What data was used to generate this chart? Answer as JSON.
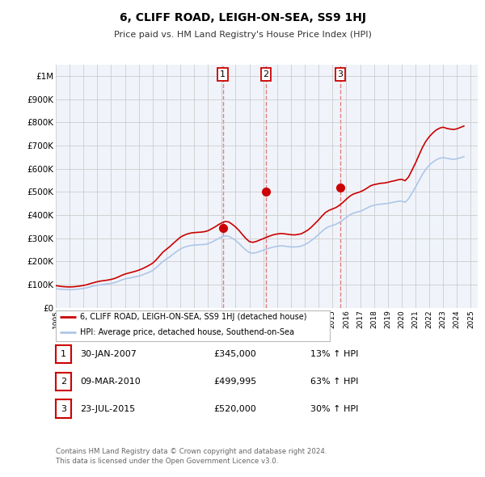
{
  "title": "6, CLIFF ROAD, LEIGH-ON-SEA, SS9 1HJ",
  "subtitle": "Price paid vs. HM Land Registry's House Price Index (HPI)",
  "background_color": "#ffffff",
  "plot_bg_color": "#f0f4fa",
  "grid_color": "#cccccc",
  "hpi_line_color": "#aec6e8",
  "price_line_color": "#cc0000",
  "dashed_line_color": "#e07070",
  "sale_marker_color": "#cc0000",
  "ylim": [
    0,
    1050000
  ],
  "yticks": [
    0,
    100000,
    200000,
    300000,
    400000,
    500000,
    600000,
    700000,
    800000,
    900000,
    1000000
  ],
  "ytick_labels": [
    "£0",
    "£100K",
    "£200K",
    "£300K",
    "£400K",
    "£500K",
    "£600K",
    "£700K",
    "£800K",
    "£900K",
    "£1M"
  ],
  "xlim_start": 1995.0,
  "xlim_end": 2025.5,
  "xtick_years": [
    1995,
    1996,
    1997,
    1998,
    1999,
    2000,
    2001,
    2002,
    2003,
    2004,
    2005,
    2006,
    2007,
    2008,
    2009,
    2010,
    2011,
    2012,
    2013,
    2014,
    2015,
    2016,
    2017,
    2018,
    2019,
    2020,
    2021,
    2022,
    2023,
    2024,
    2025
  ],
  "sales": [
    {
      "year": 2007.08,
      "price": 345000,
      "label": "1"
    },
    {
      "year": 2010.19,
      "price": 499995,
      "label": "2"
    },
    {
      "year": 2015.56,
      "price": 520000,
      "label": "3"
    }
  ],
  "sale_table": [
    {
      "num": "1",
      "date": "30-JAN-2007",
      "price": "£345,000",
      "change": "13% ↑ HPI"
    },
    {
      "num": "2",
      "date": "09-MAR-2010",
      "price": "£499,995",
      "change": "63% ↑ HPI"
    },
    {
      "num": "3",
      "date": "23-JUL-2015",
      "price": "£520,000",
      "change": "30% ↑ HPI"
    }
  ],
  "legend_entries": [
    {
      "label": "6, CLIFF ROAD, LEIGH-ON-SEA, SS9 1HJ (detached house)",
      "color": "#cc0000"
    },
    {
      "label": "HPI: Average price, detached house, Southend-on-Sea",
      "color": "#aec6e8"
    }
  ],
  "footer": "Contains HM Land Registry data © Crown copyright and database right 2024.\nThis data is licensed under the Open Government Licence v3.0.",
  "hpi_data": {
    "years": [
      1995.0,
      1995.25,
      1995.5,
      1995.75,
      1996.0,
      1996.25,
      1996.5,
      1996.75,
      1997.0,
      1997.25,
      1997.5,
      1997.75,
      1998.0,
      1998.25,
      1998.5,
      1998.75,
      1999.0,
      1999.25,
      1999.5,
      1999.75,
      2000.0,
      2000.25,
      2000.5,
      2000.75,
      2001.0,
      2001.25,
      2001.5,
      2001.75,
      2002.0,
      2002.25,
      2002.5,
      2002.75,
      2003.0,
      2003.25,
      2003.5,
      2003.75,
      2004.0,
      2004.25,
      2004.5,
      2004.75,
      2005.0,
      2005.25,
      2005.5,
      2005.75,
      2006.0,
      2006.25,
      2006.5,
      2006.75,
      2007.0,
      2007.25,
      2007.5,
      2007.75,
      2008.0,
      2008.25,
      2008.5,
      2008.75,
      2009.0,
      2009.25,
      2009.5,
      2009.75,
      2010.0,
      2010.25,
      2010.5,
      2010.75,
      2011.0,
      2011.25,
      2011.5,
      2011.75,
      2012.0,
      2012.25,
      2012.5,
      2012.75,
      2013.0,
      2013.25,
      2013.5,
      2013.75,
      2014.0,
      2014.25,
      2014.5,
      2014.75,
      2015.0,
      2015.25,
      2015.5,
      2015.75,
      2016.0,
      2016.25,
      2016.5,
      2016.75,
      2017.0,
      2017.25,
      2017.5,
      2017.75,
      2018.0,
      2018.25,
      2018.5,
      2018.75,
      2019.0,
      2019.25,
      2019.5,
      2019.75,
      2020.0,
      2020.25,
      2020.5,
      2020.75,
      2021.0,
      2021.25,
      2021.5,
      2021.75,
      2022.0,
      2022.25,
      2022.5,
      2022.75,
      2023.0,
      2023.25,
      2023.5,
      2023.75,
      2024.0,
      2024.25,
      2024.5
    ],
    "values": [
      82000,
      80000,
      79000,
      78000,
      77500,
      78000,
      79000,
      81000,
      83000,
      86000,
      90000,
      94000,
      97000,
      99000,
      101000,
      103000,
      105000,
      108000,
      113000,
      119000,
      124000,
      127000,
      130000,
      133000,
      136000,
      141000,
      147000,
      153000,
      160000,
      172000,
      186000,
      200000,
      210000,
      220000,
      232000,
      243000,
      253000,
      260000,
      265000,
      268000,
      270000,
      271000,
      272000,
      273000,
      276000,
      282000,
      290000,
      298000,
      305000,
      310000,
      308000,
      300000,
      290000,
      277000,
      262000,
      248000,
      238000,
      235000,
      238000,
      243000,
      248000,
      253000,
      258000,
      262000,
      265000,
      267000,
      266000,
      264000,
      262000,
      262000,
      263000,
      266000,
      272000,
      280000,
      291000,
      303000,
      316000,
      330000,
      342000,
      350000,
      355000,
      360000,
      368000,
      378000,
      390000,
      400000,
      408000,
      412000,
      416000,
      422000,
      430000,
      438000,
      442000,
      445000,
      447000,
      448000,
      450000,
      453000,
      456000,
      459000,
      460000,
      455000,
      470000,
      495000,
      520000,
      548000,
      575000,
      598000,
      615000,
      628000,
      638000,
      645000,
      648000,
      645000,
      642000,
      640000,
      643000,
      647000,
      652000
    ]
  },
  "price_data": {
    "years": [
      1995.0,
      1995.25,
      1995.5,
      1995.75,
      1996.0,
      1996.25,
      1996.5,
      1996.75,
      1997.0,
      1997.25,
      1997.5,
      1997.75,
      1998.0,
      1998.25,
      1998.5,
      1998.75,
      1999.0,
      1999.25,
      1999.5,
      1999.75,
      2000.0,
      2000.25,
      2000.5,
      2000.75,
      2001.0,
      2001.25,
      2001.5,
      2001.75,
      2002.0,
      2002.25,
      2002.5,
      2002.75,
      2003.0,
      2003.25,
      2003.5,
      2003.75,
      2004.0,
      2004.25,
      2004.5,
      2004.75,
      2005.0,
      2005.25,
      2005.5,
      2005.75,
      2006.0,
      2006.25,
      2006.5,
      2006.75,
      2007.0,
      2007.25,
      2007.5,
      2007.75,
      2008.0,
      2008.25,
      2008.5,
      2008.75,
      2009.0,
      2009.25,
      2009.5,
      2009.75,
      2010.0,
      2010.25,
      2010.5,
      2010.75,
      2011.0,
      2011.25,
      2011.5,
      2011.75,
      2012.0,
      2012.25,
      2012.5,
      2012.75,
      2013.0,
      2013.25,
      2013.5,
      2013.75,
      2014.0,
      2014.25,
      2014.5,
      2014.75,
      2015.0,
      2015.25,
      2015.5,
      2015.75,
      2016.0,
      2016.25,
      2016.5,
      2016.75,
      2017.0,
      2017.25,
      2017.5,
      2017.75,
      2018.0,
      2018.25,
      2018.5,
      2018.75,
      2019.0,
      2019.25,
      2019.5,
      2019.75,
      2020.0,
      2020.25,
      2020.5,
      2020.75,
      2021.0,
      2021.25,
      2021.5,
      2021.75,
      2022.0,
      2022.25,
      2022.5,
      2022.75,
      2023.0,
      2023.25,
      2023.5,
      2023.75,
      2024.0,
      2024.25,
      2024.5
    ],
    "values": [
      95000,
      93000,
      91000,
      90000,
      89500,
      90000,
      91500,
      93500,
      96000,
      99000,
      104000,
      108000,
      112000,
      115000,
      117000,
      119000,
      122000,
      126000,
      132000,
      139000,
      145000,
      149000,
      153000,
      157000,
      162000,
      168000,
      175000,
      183000,
      192000,
      206000,
      223000,
      240000,
      252000,
      264000,
      278000,
      291000,
      304000,
      312000,
      318000,
      322000,
      324000,
      325000,
      326000,
      328000,
      332000,
      340000,
      348000,
      358000,
      366000,
      372000,
      370000,
      360000,
      348000,
      333000,
      315000,
      298000,
      285000,
      282000,
      286000,
      292000,
      298000,
      304000,
      310000,
      315000,
      318000,
      320000,
      319000,
      317000,
      315000,
      314000,
      316000,
      319000,
      327000,
      336000,
      349000,
      364000,
      379000,
      396000,
      411000,
      420000,
      426000,
      432000,
      442000,
      454000,
      468000,
      481000,
      490000,
      495000,
      500000,
      507000,
      516000,
      526000,
      531000,
      534000,
      537000,
      538000,
      541000,
      545000,
      548000,
      552000,
      554000,
      548000,
      564000,
      594000,
      624000,
      658000,
      691000,
      718000,
      738000,
      754000,
      767000,
      775000,
      779000,
      774000,
      771000,
      769000,
      772000,
      778000,
      784000
    ]
  }
}
